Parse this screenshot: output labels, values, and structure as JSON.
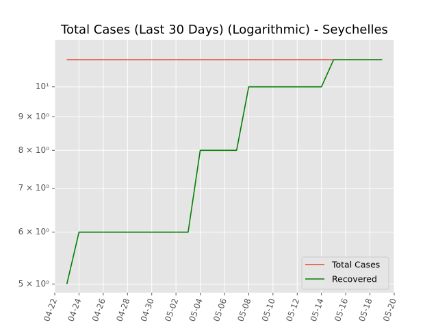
{
  "chart_data": {
    "type": "line",
    "title": "Total Cases (Last 30 Days) (Logarithmic) - Seychelles",
    "xlabel": "",
    "ylabel": "",
    "yscale": "log",
    "x_tick_labels": [
      "04-22",
      "04-24",
      "04-26",
      "04-28",
      "04-30",
      "05-02",
      "05-04",
      "05-06",
      "05-08",
      "05-10",
      "05-12",
      "05-14",
      "05-16",
      "05-18",
      "05-20"
    ],
    "y_tick_labels": [
      {
        "value": 5,
        "label": "5 × 10⁰"
      },
      {
        "value": 6,
        "label": "6 × 10⁰"
      },
      {
        "value": 7,
        "label": "7 × 10⁰"
      },
      {
        "value": 8,
        "label": "8 × 10⁰"
      },
      {
        "value": 9,
        "label": "9 × 10⁰"
      },
      {
        "value": 10,
        "label": "10¹"
      }
    ],
    "xlim": [
      "2020-04-22",
      "2020-05-20"
    ],
    "ylim": [
      4.85,
      11.8
    ],
    "grid": true,
    "legend_position": "lower-right",
    "series": [
      {
        "name": "Total Cases",
        "color": "#E24A33",
        "points": [
          [
            "2020-04-23",
            11
          ],
          [
            "2020-05-19",
            11
          ]
        ]
      },
      {
        "name": "Recovered",
        "color": "#008000",
        "points": [
          [
            "2020-04-23",
            5
          ],
          [
            "2020-04-24",
            6
          ],
          [
            "2020-05-03",
            6
          ],
          [
            "2020-05-04",
            8
          ],
          [
            "2020-05-07",
            8
          ],
          [
            "2020-05-08",
            10
          ],
          [
            "2020-05-14",
            10
          ],
          [
            "2020-05-15",
            11
          ],
          [
            "2020-05-19",
            11
          ]
        ]
      }
    ]
  }
}
